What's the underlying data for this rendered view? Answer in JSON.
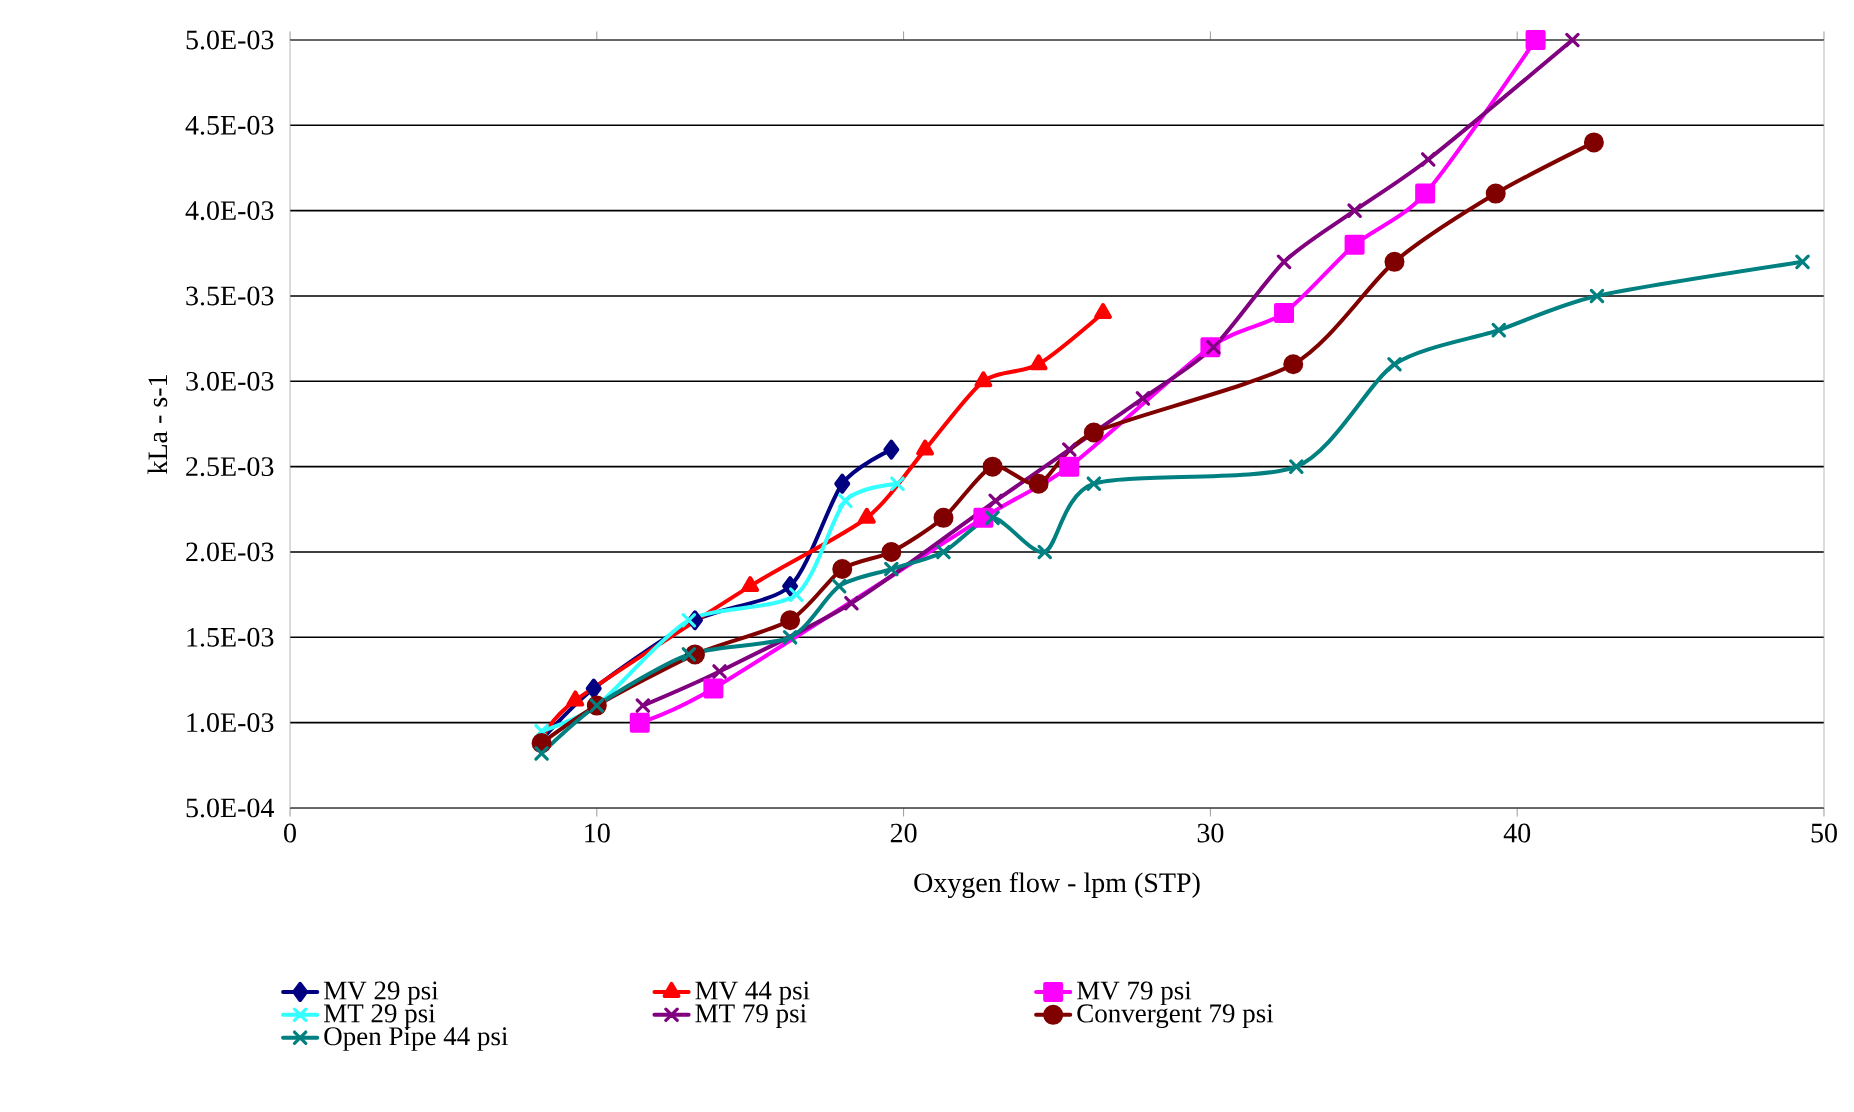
{
  "chart_data": {
    "type": "line",
    "xlabel": "Oxygen  flow - lpm (STP)",
    "ylabel": "kLa - s-1",
    "xlim": [
      0,
      50
    ],
    "xticks": [
      0,
      10,
      20,
      30,
      40,
      50
    ],
    "ylim": [
      0.0005,
      0.005
    ],
    "yticks": [
      {
        "value": 0.0005,
        "label": "5.0E-04"
      },
      {
        "value": 0.001,
        "label": "1.0E-03"
      },
      {
        "value": 0.0015,
        "label": "1.5E-03"
      },
      {
        "value": 0.002,
        "label": "2.0E-03"
      },
      {
        "value": 0.0025,
        "label": "2.5E-03"
      },
      {
        "value": 0.003,
        "label": "3.0E-03"
      },
      {
        "value": 0.0035,
        "label": "3.5E-03"
      },
      {
        "value": 0.004,
        "label": "4.0E-03"
      },
      {
        "value": 0.0045,
        "label": "4.5E-03"
      },
      {
        "value": 0.005,
        "label": "5.0E-03"
      }
    ],
    "grid": "y",
    "legend": "bottom",
    "line_style": "solid",
    "series": [
      {
        "name": "MV 29 psi",
        "color": "#000080",
        "marker": "diamond",
        "x": [
          8.2,
          9.9,
          13.2,
          16.3,
          18.0,
          19.6
        ],
        "values": [
          0.0009,
          0.0012,
          0.0016,
          0.0018,
          0.0024,
          0.0026
        ]
      },
      {
        "name": "MV 44 psi",
        "color": "#ff0000",
        "marker": "triangle",
        "x": [
          8.2,
          9.3,
          15.0,
          18.8,
          20.7,
          22.6,
          24.4,
          26.5
        ],
        "values": [
          0.0009,
          0.00113,
          0.0018,
          0.0022,
          0.0026,
          0.003,
          0.0031,
          0.0034
        ]
      },
      {
        "name": "MV 79 psi",
        "color": "#ff00ff",
        "marker": "square",
        "x": [
          11.4,
          13.8,
          22.6,
          25.4,
          30.0,
          32.4,
          34.7,
          37.0,
          40.6
        ],
        "values": [
          0.001,
          0.0012,
          0.0022,
          0.0025,
          0.0032,
          0.0034,
          0.0038,
          0.0041,
          0.005
        ]
      },
      {
        "name": "MT 29 psi",
        "color": "#33ffff",
        "marker": "cross",
        "x": [
          8.2,
          10.0,
          13.0,
          16.5,
          18.1,
          19.8
        ],
        "values": [
          0.00095,
          0.0011,
          0.0016,
          0.00175,
          0.0023,
          0.0024
        ]
      },
      {
        "name": "MT 79 psi",
        "color": "#800080",
        "marker": "cross",
        "x": [
          11.5,
          14.0,
          18.3,
          23.0,
          25.4,
          27.8,
          30.1,
          32.4,
          34.7,
          37.1,
          41.8
        ],
        "values": [
          0.0011,
          0.0013,
          0.0017,
          0.0023,
          0.0026,
          0.0029,
          0.0032,
          0.0037,
          0.004,
          0.0043,
          0.005
        ]
      },
      {
        "name": "Convergent 79 psi",
        "color": "#800000",
        "marker": "circle",
        "x": [
          8.2,
          10.0,
          13.2,
          16.3,
          18.0,
          19.6,
          21.3,
          22.9,
          24.4,
          26.2,
          32.7,
          36.0,
          39.3,
          42.5
        ],
        "values": [
          0.00088,
          0.0011,
          0.0014,
          0.0016,
          0.0019,
          0.002,
          0.0022,
          0.0025,
          0.0024,
          0.0027,
          0.0031,
          0.0037,
          0.0041,
          0.0044
        ]
      },
      {
        "name": "Open Pipe 44 psi",
        "color": "#008080",
        "marker": "cross",
        "x": [
          8.2,
          10.0,
          13.0,
          16.3,
          17.9,
          19.6,
          21.3,
          22.9,
          24.6,
          26.2,
          32.8,
          36.0,
          39.4,
          42.6,
          49.3
        ],
        "values": [
          0.00082,
          0.0011,
          0.0014,
          0.0015,
          0.0018,
          0.0019,
          0.002,
          0.0022,
          0.002,
          0.0024,
          0.0025,
          0.0031,
          0.0033,
          0.0035,
          0.0037
        ]
      }
    ]
  }
}
